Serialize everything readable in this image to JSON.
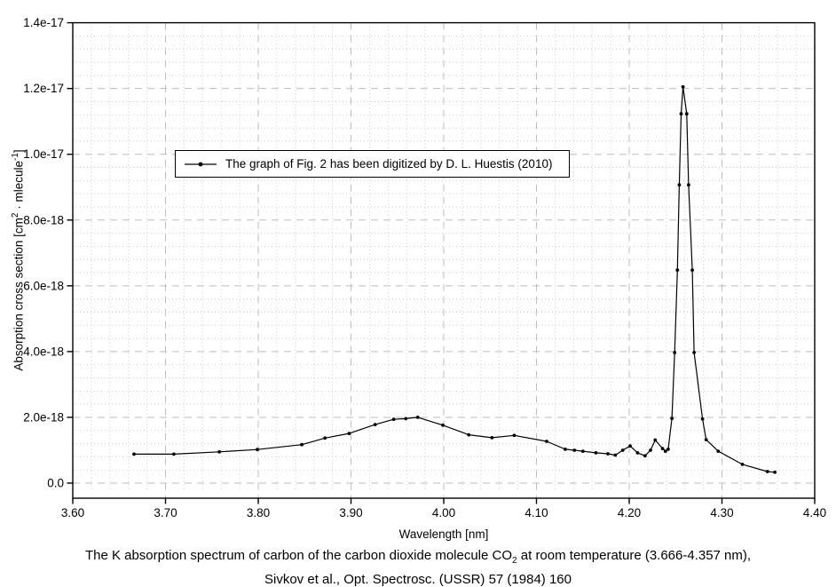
{
  "figure": {
    "caption_line1_parts": [
      {
        "t": "The K absorption spectrum of carbon of the carbon dioxide molecule CO"
      },
      {
        "t": "2",
        "sub": true
      },
      {
        "t": " at room temperature (3.666-4.357 nm),"
      }
    ],
    "caption_line2": "Sivkov et al., Opt. Spectrosc. (USSR) 57 (1984) 160"
  },
  "chart_data": {
    "type": "line",
    "title": "",
    "xlabel": "Wavelength [nm]",
    "ylabel_plain": "Absorption cross section [cm2 - mlecule-1]",
    "ylabel_parts": [
      {
        "t": "Absorption cross section [cm"
      },
      {
        "t": "2",
        "sup": true
      },
      {
        "t": " · mlecule"
      },
      {
        "t": "-1",
        "sup": true
      },
      {
        "t": "]"
      }
    ],
    "legend": "The graph of Fig. 2 has been digitized by D. L. Huestis (2010)",
    "legend_position": "inside upper-left",
    "grid": {
      "major": "dashed",
      "minor": "dotted"
    },
    "xlim": [
      3.6,
      4.4
    ],
    "ylim": [
      0,
      1.4e-17
    ],
    "x_tick_labels": [
      "3.60",
      "3.70",
      "3.80",
      "3.90",
      "4.00",
      "4.10",
      "4.20",
      "4.30",
      "4.40"
    ],
    "y_tick_labels": [
      "0.0",
      "2.0e-18",
      "4.0e-18",
      "6.0e-18",
      "8.0e-18",
      "1.0e-17",
      "1.2e-17",
      "1.4e-17"
    ],
    "x_minor_step": 0.02,
    "y_minor_step": 4e-19,
    "y_scale": 1e-18,
    "series": [
      {
        "name": "The graph of Fig. 2 has been digitized by D. L. Huestis (2010)",
        "marker": "dot",
        "color": "#000000",
        "x": [
          3.666,
          3.709,
          3.758,
          3.799,
          3.847,
          3.872,
          3.898,
          3.926,
          3.946,
          3.959,
          3.972,
          3.999,
          4.027,
          4.052,
          4.076,
          4.111,
          4.131,
          4.141,
          4.15,
          4.164,
          4.177,
          4.185,
          4.193,
          4.201,
          4.209,
          4.217,
          4.223,
          4.228,
          4.236,
          4.239,
          4.242,
          4.246,
          4.249,
          4.252,
          4.254,
          4.256,
          4.258,
          4.262,
          4.264,
          4.268,
          4.27,
          4.279,
          4.283,
          4.296,
          4.322,
          4.349,
          4.357
        ],
        "y_1e18": [
          0.88,
          0.88,
          0.95,
          1.02,
          1.17,
          1.37,
          1.51,
          1.78,
          1.94,
          1.96,
          2.0,
          1.76,
          1.47,
          1.38,
          1.45,
          1.27,
          1.03,
          1.0,
          0.97,
          0.92,
          0.89,
          0.85,
          1.0,
          1.13,
          0.92,
          0.83,
          1.0,
          1.31,
          1.05,
          0.97,
          1.03,
          1.97,
          3.97,
          6.48,
          9.07,
          11.23,
          12.05,
          11.23,
          9.07,
          6.48,
          3.97,
          1.95,
          1.32,
          0.97,
          0.57,
          0.35,
          0.33
        ]
      }
    ]
  },
  "colors": {
    "background": "#ffffff",
    "frame": "#000000",
    "grid_major": "#bdbdbd",
    "grid_minor": "#c9c9c9",
    "curve": "#000000",
    "text": "#000000"
  }
}
